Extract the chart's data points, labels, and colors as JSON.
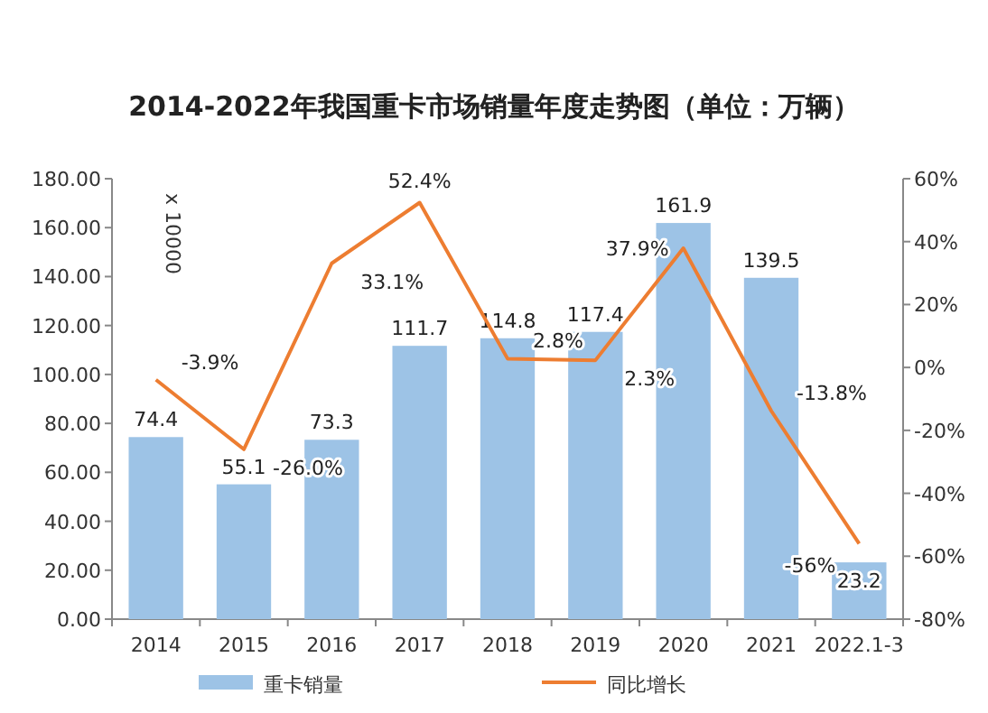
{
  "chart_data": {
    "type": "bar",
    "title": "2014-2022年我国重卡市场销量年度走势图（单位：万辆）",
    "categories": [
      "2014",
      "2015",
      "2016",
      "2017",
      "2018",
      "2019",
      "2020",
      "2021",
      "2022.1-3"
    ],
    "series": [
      {
        "name": "重卡销量",
        "color": "#9dc3e6",
        "values": [
          74.4,
          55.1,
          73.3,
          111.7,
          114.8,
          117.4,
          161.9,
          139.5,
          23.2
        ],
        "value_labels": [
          "74.4",
          "55.1",
          "73.3",
          "111.7",
          "114.8",
          "117.4",
          "161.9",
          "139.5",
          "23.2"
        ]
      },
      {
        "name": "同比增长",
        "type": "line",
        "axis": "y2",
        "color": "#ed7d31",
        "values": [
          -3.9,
          -26.0,
          33.1,
          52.4,
          2.8,
          2.3,
          37.9,
          -13.8,
          -56
        ],
        "value_labels": [
          "-3.9%",
          "-26.0%",
          "33.1%",
          "52.4%",
          "2.8%",
          "2.3%",
          "37.9%",
          "-13.8%",
          "-56%"
        ]
      }
    ],
    "ylim": [
      0,
      180
    ],
    "yticks": [
      {
        "value": 0,
        "label": "0.00"
      },
      {
        "value": 20,
        "label": "20.00"
      },
      {
        "value": 40,
        "label": "40.00"
      },
      {
        "value": 60,
        "label": "60.00"
      },
      {
        "value": 80,
        "label": "80.00"
      },
      {
        "value": 100,
        "label": "100.00"
      },
      {
        "value": 120,
        "label": "120.00"
      },
      {
        "value": 140,
        "label": "140.00"
      },
      {
        "value": 160,
        "label": "160.00"
      },
      {
        "value": 180,
        "label": "180.00"
      }
    ],
    "y2lim": [
      -80,
      60
    ],
    "y2ticks": [
      {
        "value": -80,
        "label": "-80%"
      },
      {
        "value": -60,
        "label": "-60%"
      },
      {
        "value": -40,
        "label": "-40%"
      },
      {
        "value": -20,
        "label": "-20%"
      },
      {
        "value": 0,
        "label": "0%"
      },
      {
        "value": 20,
        "label": "20%"
      },
      {
        "value": 40,
        "label": "40%"
      },
      {
        "value": 60,
        "label": "60%"
      }
    ],
    "annotations": [
      "x 10000"
    ],
    "legend": "bottom"
  }
}
